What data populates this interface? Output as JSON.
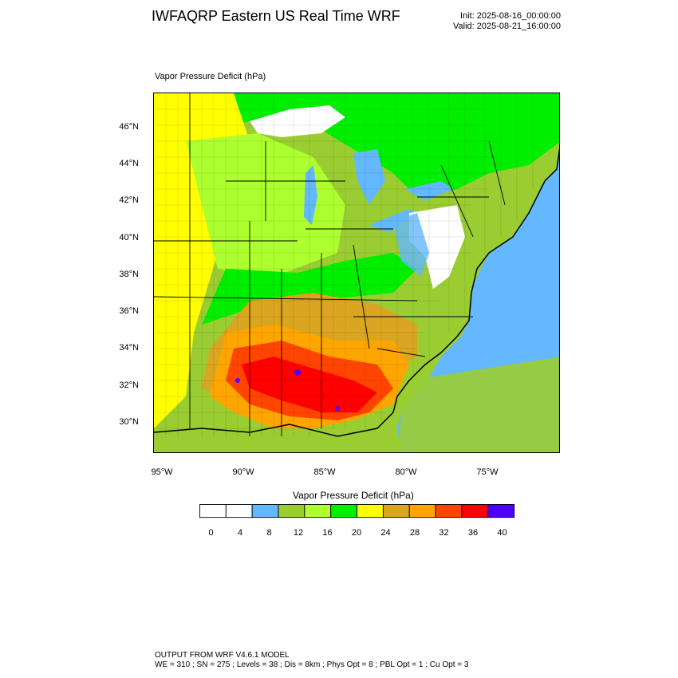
{
  "header": {
    "title": "IWFAQRP Eastern US Real Time WRF",
    "init": "Init: 2025-08-16_00:00:00",
    "valid": "Valid: 2025-08-21_16:00:00"
  },
  "plot": {
    "title": "Vapor Pressure Deficit   (hPa)",
    "lat_labels": [
      "46°N",
      "44°N",
      "42°N",
      "40°N",
      "38°N",
      "36°N",
      "34°N",
      "32°N",
      "30°N"
    ],
    "lon_labels": [
      "95°W",
      "90°W",
      "85°W",
      "80°W",
      "75°W"
    ]
  },
  "colorbar": {
    "title": "Vapor Pressure Deficit   (hPa)",
    "labels": [
      "0",
      "4",
      "8",
      "12",
      "16",
      "20",
      "24",
      "28",
      "32",
      "36",
      "40"
    ],
    "colors": [
      "#ffffff",
      "#ffffff",
      "#63b8ff",
      "#9acd32",
      "#adff2f",
      "#00ee00",
      "#ffff00",
      "#daa520",
      "#ffa500",
      "#ff4500",
      "#ff0000",
      "#4b00ff"
    ]
  },
  "palette": {
    "ocean": "#63b8ff",
    "land_low": "#9acd32",
    "boundary": "#000000"
  },
  "footer": {
    "line1": "OUTPUT FROM WRF V4.6.1 MODEL",
    "line2": "WE = 310 ; SN = 275 ; Levels = 38 ; Dis = 8km ; Phys Opt = 8 ; PBL Opt = 1 ; Cu Opt = 3"
  }
}
